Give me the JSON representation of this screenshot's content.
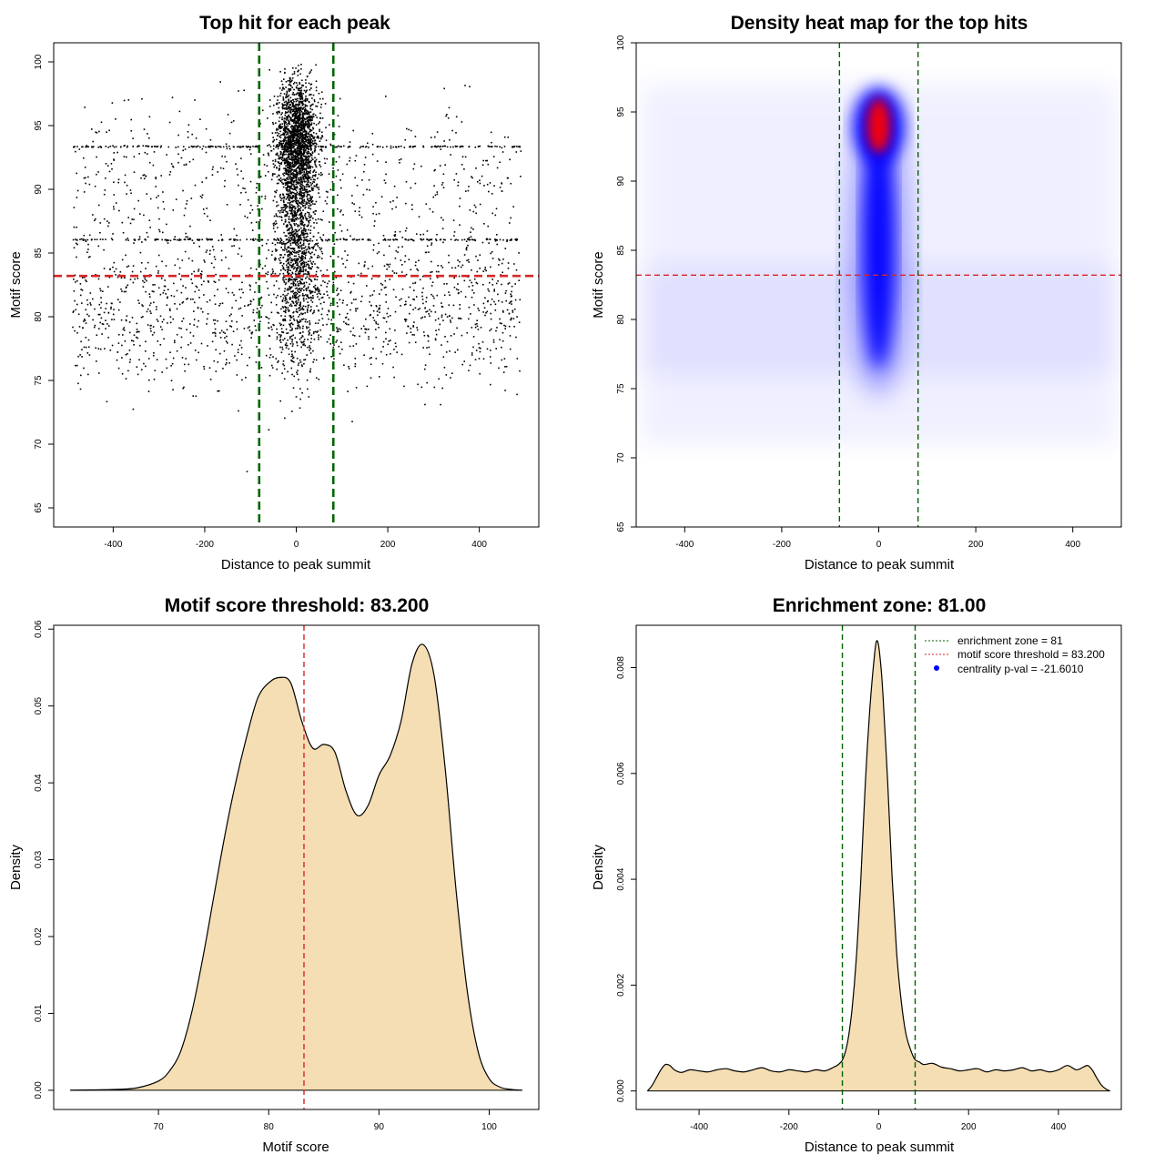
{
  "colors": {
    "background": "#ffffff",
    "ink": "#000000",
    "green_line": "#006400",
    "red_line": "#d62728",
    "fill": "#f5deb3",
    "heat_low": "#ffffff",
    "heat_mid": "#0000ff",
    "heat_high": "#ff0000"
  },
  "chart_data": [
    {
      "id": "scatter",
      "type": "scatter",
      "title": "Top hit for each peak",
      "xlabel": "Distance to peak summit",
      "ylabel": "Motif score",
      "xlim": [
        -530,
        530
      ],
      "ylim": [
        63.5,
        101.5
      ],
      "xticks": [
        -400,
        -200,
        0,
        200,
        400
      ],
      "xtick_labels": [
        "-400",
        "-200",
        "0",
        "200",
        "400"
      ],
      "yticks": [
        65,
        70,
        75,
        80,
        85,
        90,
        95,
        100
      ],
      "ytick_labels": [
        "65",
        "70",
        "75",
        "80",
        "85",
        "90",
        "95",
        "100"
      ],
      "vlines": [
        -81,
        81
      ],
      "hline": 83.2,
      "point_summary": {
        "center_peak_score": 94,
        "background_band_scores": [
          93.4,
          86.1
        ],
        "min_score": 64.9,
        "max_score": 99.9
      }
    },
    {
      "id": "heatmap",
      "type": "heatmap",
      "title": "Density heat map for the top hits",
      "xlabel": "Distance to peak summit",
      "ylabel": "Motif score",
      "xlim": [
        -500,
        500
      ],
      "ylim": [
        65,
        100
      ],
      "xticks": [
        -400,
        -200,
        0,
        200,
        400
      ],
      "xtick_labels": [
        "-400",
        "-200",
        "0",
        "200",
        "400"
      ],
      "yticks": [
        65,
        70,
        75,
        80,
        85,
        90,
        95,
        100
      ],
      "ytick_labels": [
        "65",
        "70",
        "75",
        "80",
        "85",
        "90",
        "95",
        "100"
      ],
      "vlines": [
        -81,
        81
      ],
      "hline": 83.2,
      "hotspot": {
        "x": 0,
        "y": 94
      }
    },
    {
      "id": "score_density",
      "type": "area",
      "title": "Motif score threshold: 83.200",
      "xlabel": "Motif score",
      "ylabel": "Density",
      "xlim": [
        60.5,
        104.5
      ],
      "ylim": [
        -0.0025,
        0.0605
      ],
      "xticks": [
        70,
        80,
        90,
        100
      ],
      "xtick_labels": [
        "70",
        "80",
        "90",
        "100"
      ],
      "yticks": [
        0,
        0.01,
        0.02,
        0.03,
        0.04,
        0.05,
        0.06
      ],
      "ytick_labels": [
        "0.00",
        "0.01",
        "0.02",
        "0.03",
        "0.04",
        "0.05",
        "0.06"
      ],
      "vline": 83.2,
      "x": [
        62,
        64,
        66,
        68,
        70,
        71,
        72,
        73,
        74,
        75,
        76,
        77,
        78,
        79,
        80,
        81,
        82,
        83,
        84,
        85,
        86,
        87,
        88,
        89,
        90,
        91,
        92,
        93,
        94,
        95,
        96,
        97,
        98,
        99,
        100,
        101,
        102,
        103
      ],
      "y": [
        0,
        5e-05,
        0.0001,
        0.0003,
        0.0012,
        0.0025,
        0.005,
        0.01,
        0.017,
        0.025,
        0.033,
        0.04,
        0.046,
        0.051,
        0.053,
        0.0537,
        0.053,
        0.048,
        0.0445,
        0.045,
        0.044,
        0.039,
        0.0358,
        0.037,
        0.041,
        0.0435,
        0.048,
        0.0555,
        0.058,
        0.054,
        0.042,
        0.026,
        0.013,
        0.005,
        0.0015,
        0.0004,
        0.0001,
        0
      ]
    },
    {
      "id": "distance_density",
      "type": "area",
      "title": "Enrichment zone: 81.00",
      "xlabel": "Distance to peak summit",
      "ylabel": "Density",
      "xlim": [
        -540,
        540
      ],
      "ylim": [
        -0.00035,
        0.0088
      ],
      "xticks": [
        -400,
        -200,
        0,
        200,
        400
      ],
      "xtick_labels": [
        "-400",
        "-200",
        "0",
        "200",
        "400"
      ],
      "yticks": [
        0,
        0.002,
        0.004,
        0.006,
        0.008
      ],
      "ytick_labels": [
        "0.000",
        "0.002",
        "0.004",
        "0.006",
        "0.008"
      ],
      "vlines": [
        -81,
        81
      ],
      "x": [
        -515,
        -505,
        -495,
        -485,
        -475,
        -465,
        -455,
        -440,
        -420,
        -400,
        -380,
        -360,
        -340,
        -320,
        -300,
        -280,
        -260,
        -240,
        -220,
        -200,
        -180,
        -160,
        -140,
        -120,
        -100,
        -90,
        -80,
        -70,
        -60,
        -50,
        -40,
        -30,
        -20,
        -10,
        -5,
        0,
        5,
        10,
        20,
        30,
        40,
        50,
        60,
        70,
        80,
        90,
        100,
        120,
        140,
        160,
        180,
        200,
        220,
        240,
        260,
        280,
        300,
        320,
        340,
        360,
        380,
        400,
        420,
        440,
        455,
        465,
        475,
        485,
        495,
        505,
        515
      ],
      "y": [
        0,
        0.0001,
        0.00025,
        0.0004,
        0.0005,
        0.00048,
        0.0004,
        0.00035,
        0.0004,
        0.00038,
        0.00036,
        0.0004,
        0.00042,
        0.00038,
        0.00036,
        0.0004,
        0.00044,
        0.00038,
        0.00036,
        0.0004,
        0.00038,
        0.00036,
        0.0004,
        0.00038,
        0.00045,
        0.0005,
        0.0006,
        0.0009,
        0.0015,
        0.0025,
        0.004,
        0.0058,
        0.0072,
        0.0082,
        0.0085,
        0.0084,
        0.008,
        0.0074,
        0.0058,
        0.004,
        0.0026,
        0.0017,
        0.0011,
        0.0008,
        0.0006,
        0.00055,
        0.0005,
        0.00052,
        0.00045,
        0.00042,
        0.00038,
        0.0004,
        0.00042,
        0.00036,
        0.0004,
        0.00038,
        0.0004,
        0.00044,
        0.00038,
        0.0004,
        0.00036,
        0.0004,
        0.00048,
        0.0004,
        0.00045,
        0.00048,
        0.0004,
        0.00025,
        0.00012,
        4e-05,
        0
      ]
    }
  ],
  "legend": {
    "enrichment_zone": "enrichment zone = 81",
    "score_threshold": "motif score threshold = 83.200",
    "centrality": "centrality p-val = -21.6010"
  }
}
